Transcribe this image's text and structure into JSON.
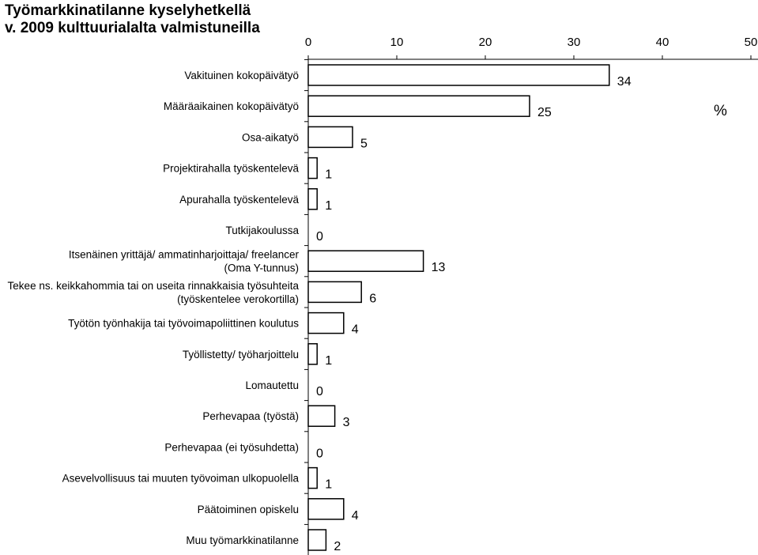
{
  "chart_data": {
    "type": "bar",
    "orientation": "horizontal",
    "title_lines": [
      "Työmarkkinatilanne kyselyhetkellä",
      "v. 2009 kulttuurialalta valmistuneilla"
    ],
    "unit": "%",
    "xlim": [
      0,
      50
    ],
    "x_ticks": [
      "0",
      "10",
      "20",
      "30",
      "40",
      "50"
    ],
    "grid": false,
    "categories": [
      [
        "Vakituinen kokopäivätyö"
      ],
      [
        "Määräaikainen kokopäivätyö"
      ],
      [
        "Osa-aikatyö"
      ],
      [
        "Projektirahalla työskentelevä"
      ],
      [
        "Apurahalla työskentelevä"
      ],
      [
        "Tutkijakoulussa"
      ],
      [
        "Itsenäinen yrittäjä/ ammatinharjoittaja/ freelancer",
        "(Oma Y-tunnus)"
      ],
      [
        "Tekee ns. keikkahommia tai on useita rinnakkaisia työsuhteita",
        "(työskentelee verokortilla)"
      ],
      [
        "Työtön työnhakija tai työvoimapoliittinen koulutus"
      ],
      [
        "Työllistetty/ työharjoittelu"
      ],
      [
        "Lomautettu"
      ],
      [
        "Perhevapaa (työstä)"
      ],
      [
        "Perhevapaa (ei työsuhdetta)"
      ],
      [
        "Asevelvollisuus tai muuten työvoiman ulkopuolella"
      ],
      [
        "Päätoiminen opiskelu"
      ],
      [
        "Muu työmarkkinatilanne"
      ]
    ],
    "values": [
      34,
      25,
      5,
      1,
      1,
      0,
      13,
      6,
      4,
      1,
      0,
      3,
      0,
      1,
      4,
      2
    ],
    "colors": {
      "bar_fill": "#ffffff",
      "bar_stroke": "#000000",
      "axis": "#000000",
      "text": "#000000"
    }
  }
}
